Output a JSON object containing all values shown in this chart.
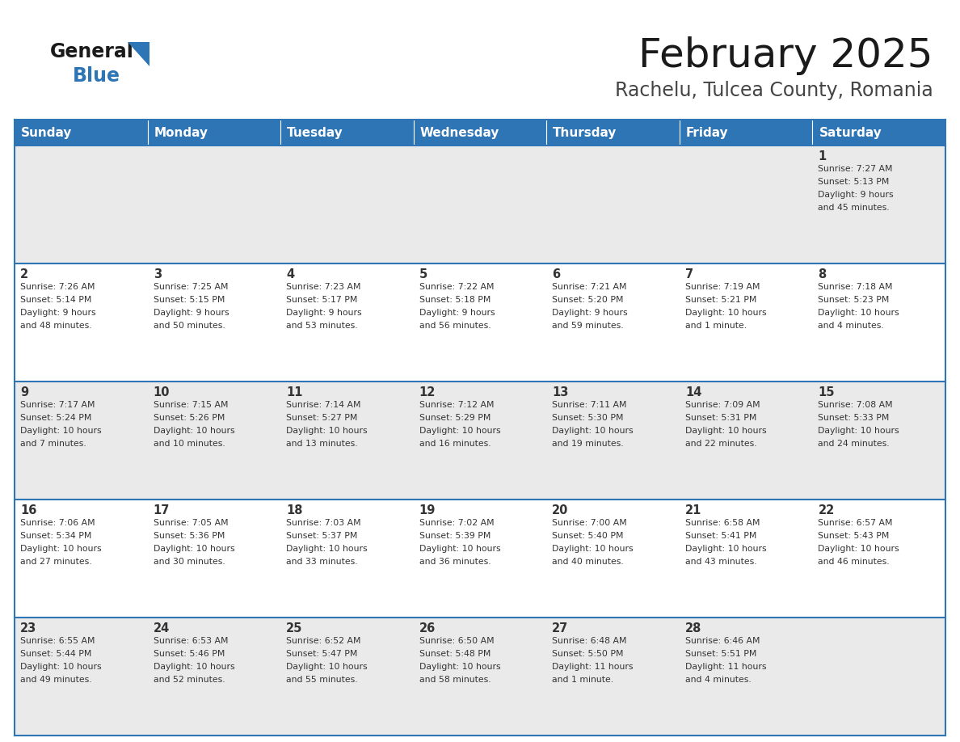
{
  "title": "February 2025",
  "subtitle": "Rachelu, Tulcea County, Romania",
  "header_color": "#2E75B6",
  "header_text_color": "#FFFFFF",
  "weekdays": [
    "Sunday",
    "Monday",
    "Tuesday",
    "Wednesday",
    "Thursday",
    "Friday",
    "Saturday"
  ],
  "cell_bg_light": "#EAEAEA",
  "cell_bg_white": "#FFFFFF",
  "divider_color": "#2E75B6",
  "text_color": "#333333",
  "title_fontsize": 36,
  "subtitle_fontsize": 17,
  "day_num_fontsize": 10.5,
  "cell_text_fontsize": 7.8,
  "header_fontsize": 11,
  "days": [
    {
      "day": 1,
      "col": 6,
      "row": 0,
      "sunrise": "7:27 AM",
      "sunset": "5:13 PM",
      "daylight": "9 hours and 45 minutes."
    },
    {
      "day": 2,
      "col": 0,
      "row": 1,
      "sunrise": "7:26 AM",
      "sunset": "5:14 PM",
      "daylight": "9 hours and 48 minutes."
    },
    {
      "day": 3,
      "col": 1,
      "row": 1,
      "sunrise": "7:25 AM",
      "sunset": "5:15 PM",
      "daylight": "9 hours and 50 minutes."
    },
    {
      "day": 4,
      "col": 2,
      "row": 1,
      "sunrise": "7:23 AM",
      "sunset": "5:17 PM",
      "daylight": "9 hours and 53 minutes."
    },
    {
      "day": 5,
      "col": 3,
      "row": 1,
      "sunrise": "7:22 AM",
      "sunset": "5:18 PM",
      "daylight": "9 hours and 56 minutes."
    },
    {
      "day": 6,
      "col": 4,
      "row": 1,
      "sunrise": "7:21 AM",
      "sunset": "5:20 PM",
      "daylight": "9 hours and 59 minutes."
    },
    {
      "day": 7,
      "col": 5,
      "row": 1,
      "sunrise": "7:19 AM",
      "sunset": "5:21 PM",
      "daylight": "10 hours and 1 minute."
    },
    {
      "day": 8,
      "col": 6,
      "row": 1,
      "sunrise": "7:18 AM",
      "sunset": "5:23 PM",
      "daylight": "10 hours and 4 minutes."
    },
    {
      "day": 9,
      "col": 0,
      "row": 2,
      "sunrise": "7:17 AM",
      "sunset": "5:24 PM",
      "daylight": "10 hours and 7 minutes."
    },
    {
      "day": 10,
      "col": 1,
      "row": 2,
      "sunrise": "7:15 AM",
      "sunset": "5:26 PM",
      "daylight": "10 hours and 10 minutes."
    },
    {
      "day": 11,
      "col": 2,
      "row": 2,
      "sunrise": "7:14 AM",
      "sunset": "5:27 PM",
      "daylight": "10 hours and 13 minutes."
    },
    {
      "day": 12,
      "col": 3,
      "row": 2,
      "sunrise": "7:12 AM",
      "sunset": "5:29 PM",
      "daylight": "10 hours and 16 minutes."
    },
    {
      "day": 13,
      "col": 4,
      "row": 2,
      "sunrise": "7:11 AM",
      "sunset": "5:30 PM",
      "daylight": "10 hours and 19 minutes."
    },
    {
      "day": 14,
      "col": 5,
      "row": 2,
      "sunrise": "7:09 AM",
      "sunset": "5:31 PM",
      "daylight": "10 hours and 22 minutes."
    },
    {
      "day": 15,
      "col": 6,
      "row": 2,
      "sunrise": "7:08 AM",
      "sunset": "5:33 PM",
      "daylight": "10 hours and 24 minutes."
    },
    {
      "day": 16,
      "col": 0,
      "row": 3,
      "sunrise": "7:06 AM",
      "sunset": "5:34 PM",
      "daylight": "10 hours and 27 minutes."
    },
    {
      "day": 17,
      "col": 1,
      "row": 3,
      "sunrise": "7:05 AM",
      "sunset": "5:36 PM",
      "daylight": "10 hours and 30 minutes."
    },
    {
      "day": 18,
      "col": 2,
      "row": 3,
      "sunrise": "7:03 AM",
      "sunset": "5:37 PM",
      "daylight": "10 hours and 33 minutes."
    },
    {
      "day": 19,
      "col": 3,
      "row": 3,
      "sunrise": "7:02 AM",
      "sunset": "5:39 PM",
      "daylight": "10 hours and 36 minutes."
    },
    {
      "day": 20,
      "col": 4,
      "row": 3,
      "sunrise": "7:00 AM",
      "sunset": "5:40 PM",
      "daylight": "10 hours and 40 minutes."
    },
    {
      "day": 21,
      "col": 5,
      "row": 3,
      "sunrise": "6:58 AM",
      "sunset": "5:41 PM",
      "daylight": "10 hours and 43 minutes."
    },
    {
      "day": 22,
      "col": 6,
      "row": 3,
      "sunrise": "6:57 AM",
      "sunset": "5:43 PM",
      "daylight": "10 hours and 46 minutes."
    },
    {
      "day": 23,
      "col": 0,
      "row": 4,
      "sunrise": "6:55 AM",
      "sunset": "5:44 PM",
      "daylight": "10 hours and 49 minutes."
    },
    {
      "day": 24,
      "col": 1,
      "row": 4,
      "sunrise": "6:53 AM",
      "sunset": "5:46 PM",
      "daylight": "10 hours and 52 minutes."
    },
    {
      "day": 25,
      "col": 2,
      "row": 4,
      "sunrise": "6:52 AM",
      "sunset": "5:47 PM",
      "daylight": "10 hours and 55 minutes."
    },
    {
      "day": 26,
      "col": 3,
      "row": 4,
      "sunrise": "6:50 AM",
      "sunset": "5:48 PM",
      "daylight": "10 hours and 58 minutes."
    },
    {
      "day": 27,
      "col": 4,
      "row": 4,
      "sunrise": "6:48 AM",
      "sunset": "5:50 PM",
      "daylight": "11 hours and 1 minute."
    },
    {
      "day": 28,
      "col": 5,
      "row": 4,
      "sunrise": "6:46 AM",
      "sunset": "5:51 PM",
      "daylight": "11 hours and 4 minutes."
    }
  ]
}
